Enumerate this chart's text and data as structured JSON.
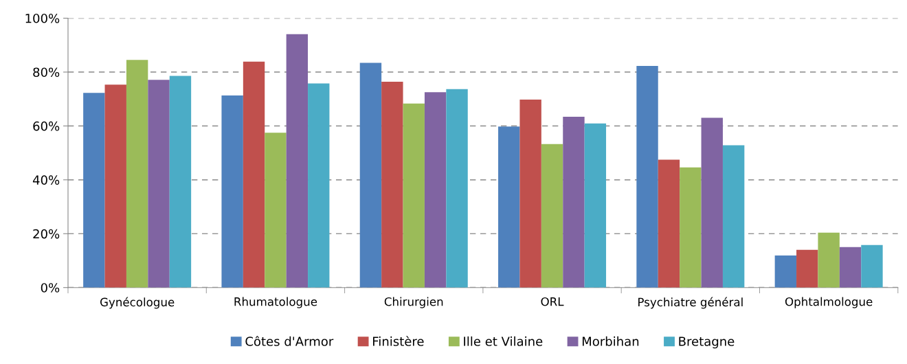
{
  "chart_data": {
    "type": "bar",
    "categories": [
      "Gynécologue",
      "Rhumatologue",
      "Chirurgien",
      "ORL",
      "Psychiatre général",
      "Ophtalmologue"
    ],
    "series": [
      {
        "name": "Côtes d'Armor",
        "color": "#4f81bd",
        "values": [
          72.3,
          71.3,
          83.4,
          59.8,
          82.3,
          11.9
        ]
      },
      {
        "name": "Finistère",
        "color": "#c0504d",
        "values": [
          75.3,
          83.9,
          76.4,
          69.8,
          47.5,
          14.0
        ]
      },
      {
        "name": "Ille et Vilaine",
        "color": "#9bbb59",
        "values": [
          84.5,
          57.5,
          68.3,
          53.3,
          44.6,
          20.4
        ]
      },
      {
        "name": "Morbihan",
        "color": "#8064a2",
        "values": [
          77.1,
          94.1,
          72.5,
          63.4,
          63.0,
          15.0
        ]
      },
      {
        "name": "Bretagne",
        "color": "#4bacc6",
        "values": [
          78.6,
          75.8,
          73.7,
          60.9,
          52.8,
          15.8
        ]
      }
    ],
    "ylim": [
      0,
      100
    ],
    "yticks": [
      {
        "value": 0,
        "label": "0%"
      },
      {
        "value": 20,
        "label": "20%"
      },
      {
        "value": 40,
        "label": "40%"
      },
      {
        "value": 60,
        "label": "60%"
      },
      {
        "value": 80,
        "label": "80%"
      },
      {
        "value": 100,
        "label": "100%"
      }
    ],
    "grid": "y",
    "legend": "bottom"
  }
}
